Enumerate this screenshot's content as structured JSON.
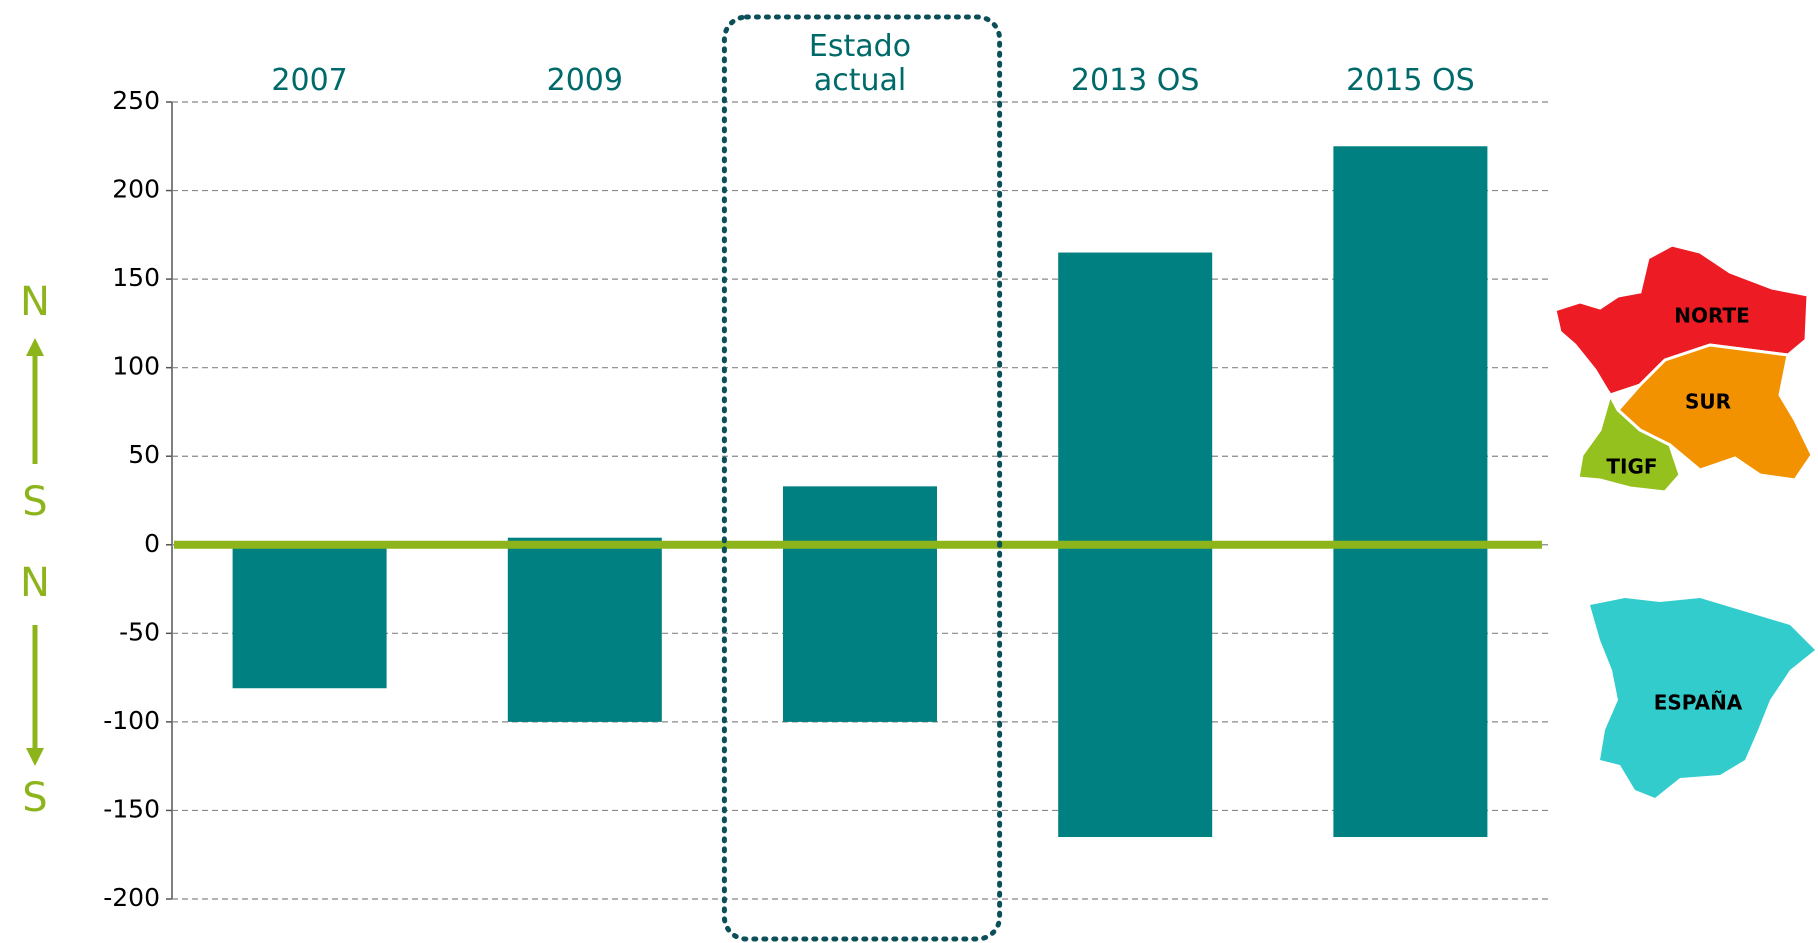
{
  "chart_data": {
    "type": "bar",
    "categories": [
      "2007",
      "2009",
      "Estado actual",
      "2013 OS",
      "2015 OS"
    ],
    "series": [
      {
        "color": "#008080",
        "values": [
          0,
          4,
          33,
          165,
          225
        ]
      },
      {
        "color": "#008080",
        "values": [
          -81,
          -100,
          -100,
          -165,
          -165
        ]
      }
    ],
    "ylim": [
      -200,
      250
    ],
    "yticks": [
      -200,
      -150,
      -100,
      -50,
      0,
      50,
      100,
      150,
      200,
      250
    ],
    "grid": true,
    "zero_line_color": "#8db51b",
    "highlight_category": 2,
    "axis_labels": [
      "N",
      "S",
      "N",
      "S"
    ],
    "annotations": [
      "NORTE",
      "SUR",
      "TIGF",
      "ESPAÑA"
    ]
  }
}
